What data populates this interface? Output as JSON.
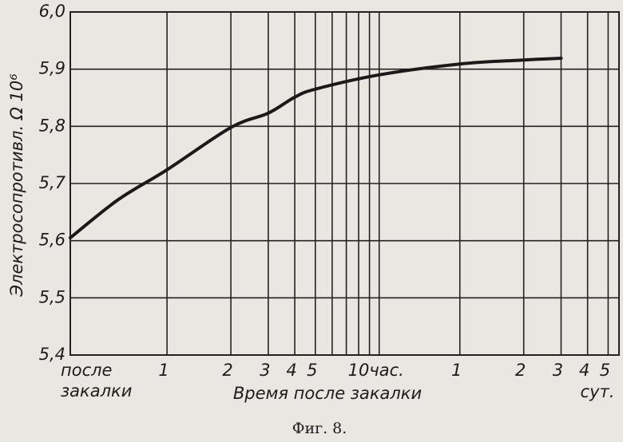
{
  "chart_data": {
    "type": "line",
    "title": "Фиг. 8.",
    "x_label": "Время после закалки",
    "y_label": "Электросопротивл. Ω 10⁶",
    "x_unit_label": "сут.",
    "x_scale": "log",
    "xlim": [
      0.35,
      135
    ],
    "xticks": [
      {
        "value": 0.35,
        "label": "после закалки"
      },
      1,
      2,
      3,
      4,
      5,
      {
        "value": 10,
        "label": "10час."
      },
      {
        "value": 24,
        "label": "1"
      },
      {
        "value": 48,
        "label": "2"
      },
      {
        "value": 72,
        "label": "3"
      },
      {
        "value": 96,
        "label": "4"
      },
      {
        "value": 120,
        "label": "5"
      }
    ],
    "minor_xticks": [
      6,
      7,
      8,
      9
    ],
    "ylim": [
      5.4,
      6.0
    ],
    "yticks": [
      {
        "value": 5.4,
        "label": "5,4"
      },
      {
        "value": 5.5,
        "label": "5,5"
      },
      {
        "value": 5.6,
        "label": "5,6"
      },
      {
        "value": 5.7,
        "label": "5,7"
      },
      {
        "value": 5.8,
        "label": "5,8"
      },
      {
        "value": 5.9,
        "label": "5,9"
      },
      {
        "value": 6.0,
        "label": "6,0"
      }
    ],
    "grid": true,
    "color": "#1a1a1a",
    "x": [
      0.35,
      0.59,
      1,
      2,
      3,
      4,
      5,
      10,
      24,
      48,
      72
    ],
    "values": [
      5.605,
      5.672,
      5.724,
      5.798,
      5.823,
      5.851,
      5.865,
      5.89,
      5.909,
      5.916,
      5.919
    ]
  }
}
